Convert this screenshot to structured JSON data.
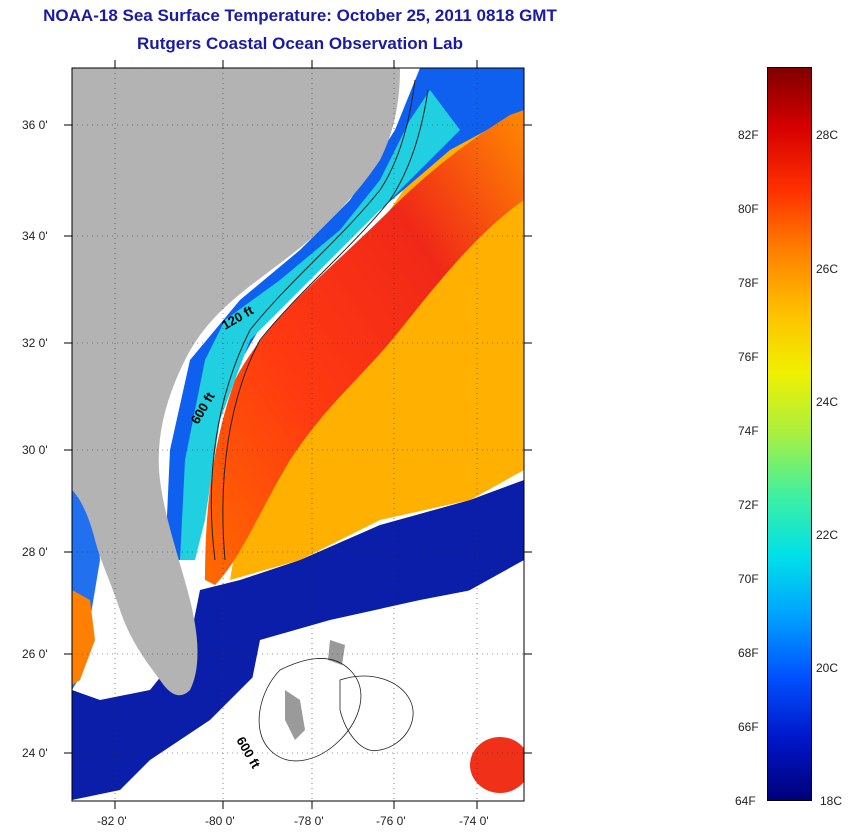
{
  "title": {
    "line1": "NOAA-18 Sea Surface Temperature:  October 25, 2011 0818 GMT",
    "line2": "Rutgers Coastal Ocean Observation Lab"
  },
  "map": {
    "lat_ticks": [
      "36 0'",
      "34 0'",
      "32 0'",
      "30 0'",
      "28 0'",
      "26 0'",
      "24 0'"
    ],
    "lon_ticks": [
      "-82 0'",
      "-80 0'",
      "-78 0'",
      "-76 0'",
      "-74 0'"
    ],
    "contour_labels": [
      "120 ft",
      "600 ft",
      "600 ft"
    ],
    "colors": {
      "land": "#b3b3b3",
      "no_data": "#ffffff",
      "cold": "#0a1eaa",
      "warm": "#e8281e"
    }
  },
  "colorbar": {
    "fahrenheit_labels": [
      "82F",
      "80F",
      "78F",
      "76F",
      "74F",
      "72F",
      "70F",
      "68F",
      "66F",
      "64F"
    ],
    "celsius_labels": [
      "28C",
      "26C",
      "24C",
      "22C",
      "20C",
      "18C"
    ],
    "range_celsius": [
      18,
      29.5
    ],
    "colors": [
      "#00007a",
      "#0016c8",
      "#0050ff",
      "#00a0ff",
      "#00e0e8",
      "#40f0a0",
      "#a8f040",
      "#f0f000",
      "#ffc000",
      "#ff8000",
      "#ff3000",
      "#d80000",
      "#800000"
    ]
  }
}
